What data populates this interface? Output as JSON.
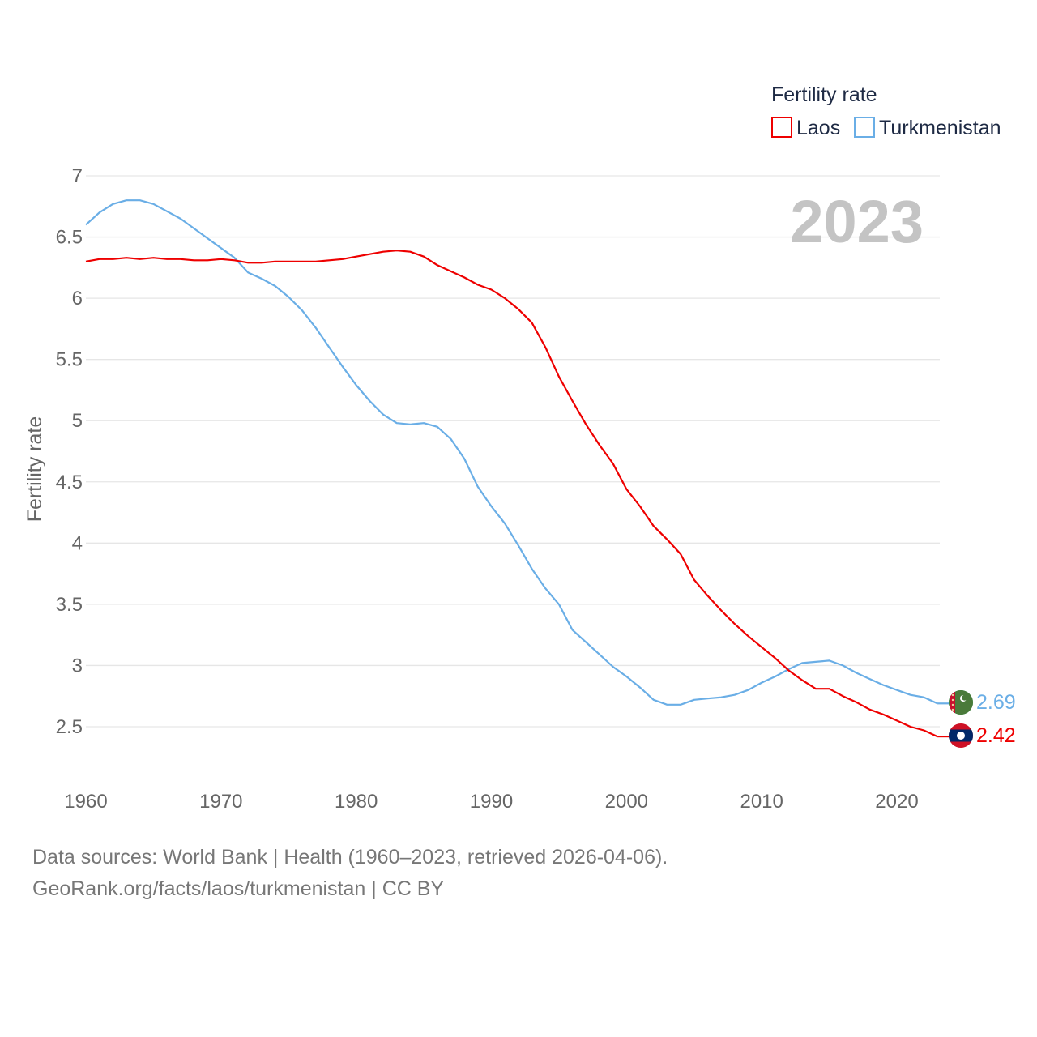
{
  "chart_data": {
    "type": "line",
    "title": "Fertility rate",
    "ylabel": "Fertility rate",
    "xlabel": "",
    "year_label": "2023",
    "xlim": [
      1960,
      2023.6
    ],
    "ylim": [
      2.2,
      7
    ],
    "x_ticks": [
      1960,
      1970,
      1980,
      1990,
      2000,
      2010,
      2020
    ],
    "y_ticks": [
      2.5,
      3,
      3.5,
      4,
      4.5,
      5,
      5.5,
      6,
      6.5,
      7
    ],
    "x": [
      1960,
      1961,
      1962,
      1963,
      1964,
      1965,
      1966,
      1967,
      1968,
      1969,
      1970,
      1971,
      1972,
      1973,
      1974,
      1975,
      1976,
      1977,
      1978,
      1979,
      1980,
      1981,
      1982,
      1983,
      1984,
      1985,
      1986,
      1987,
      1988,
      1989,
      1990,
      1991,
      1992,
      1993,
      1994,
      1995,
      1996,
      1997,
      1998,
      1999,
      2000,
      2001,
      2002,
      2003,
      2004,
      2005,
      2006,
      2007,
      2008,
      2009,
      2010,
      2011,
      2012,
      2013,
      2014,
      2015,
      2016,
      2017,
      2018,
      2019,
      2020,
      2021,
      2022,
      2023
    ],
    "series": [
      {
        "name": "Laos",
        "color": "#ee0000",
        "end_label": "2.42",
        "values": [
          6.3,
          6.32,
          6.32,
          6.33,
          6.32,
          6.33,
          6.32,
          6.32,
          6.31,
          6.31,
          6.32,
          6.31,
          6.29,
          6.29,
          6.3,
          6.3,
          6.3,
          6.3,
          6.31,
          6.32,
          6.34,
          6.36,
          6.38,
          6.39,
          6.38,
          6.34,
          6.27,
          6.22,
          6.17,
          6.11,
          6.07,
          6.0,
          5.91,
          5.8,
          5.6,
          5.36,
          5.16,
          4.97,
          4.8,
          4.65,
          4.44,
          4.3,
          4.14,
          4.03,
          3.91,
          3.7,
          3.57,
          3.45,
          3.34,
          3.24,
          3.15,
          3.06,
          2.96,
          2.88,
          2.81,
          2.81,
          2.75,
          2.7,
          2.64,
          2.6,
          2.55,
          2.5,
          2.47,
          2.42
        ]
      },
      {
        "name": "Turkmenistan",
        "color": "#6aaee6",
        "end_label": "2.69",
        "values": [
          6.6,
          6.7,
          6.77,
          6.8,
          6.8,
          6.77,
          6.71,
          6.65,
          6.57,
          6.49,
          6.41,
          6.33,
          6.21,
          6.16,
          6.1,
          6.01,
          5.9,
          5.76,
          5.6,
          5.44,
          5.29,
          5.16,
          5.05,
          4.98,
          4.97,
          4.98,
          4.95,
          4.85,
          4.69,
          4.46,
          4.3,
          4.16,
          3.98,
          3.79,
          3.63,
          3.5,
          3.29,
          3.19,
          3.09,
          2.99,
          2.91,
          2.82,
          2.72,
          2.68,
          2.68,
          2.72,
          2.73,
          2.74,
          2.76,
          2.8,
          2.86,
          2.91,
          2.97,
          3.02,
          3.03,
          3.04,
          3.0,
          2.94,
          2.89,
          2.84,
          2.8,
          2.76,
          2.74,
          2.69
        ]
      }
    ]
  },
  "legend": {
    "title": "Fertility rate",
    "items": [
      "Laos",
      "Turkmenistan"
    ]
  },
  "footer": {
    "line1": "Data sources: World Bank | Health (1960–2023, retrieved 2026-04-06).",
    "line2": "GeoRank.org/facts/laos/turkmenistan | CC BY"
  }
}
